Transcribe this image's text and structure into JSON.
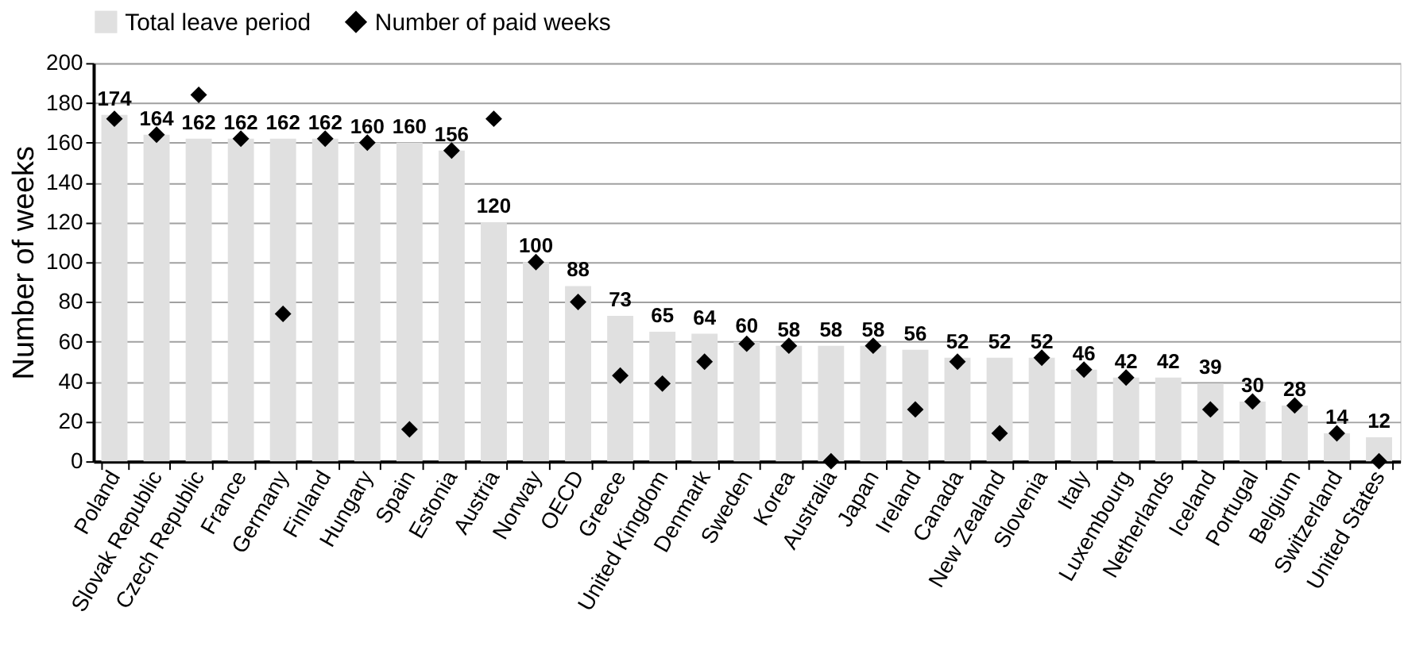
{
  "chart_data": {
    "type": "bar",
    "ylabel": "Number of weeks",
    "categories": [
      "Poland",
      "Slovak Republic",
      "Czech Republic",
      "France",
      "Germany",
      "Finland",
      "Hungary",
      "Spain",
      "Estonia",
      "Austria",
      "Norway",
      "OECD",
      "Greece",
      "United Kingdom",
      "Denmark",
      "Sweden",
      "Korea",
      "Australia",
      "Japan",
      "Ireland",
      "Canada",
      "New Zealand",
      "Slovenia",
      "Italy",
      "Luxembourg",
      "Netherlands",
      "Iceland",
      "Portugal",
      "Belgium",
      "Switzerland",
      "United States"
    ],
    "series": [
      {
        "name": "Total leave period",
        "color": "#e0e0e0",
        "values": [
          174,
          164,
          162,
          162,
          162,
          162,
          160,
          160,
          156,
          120,
          100,
          88,
          73,
          65,
          64,
          60,
          58,
          58,
          58,
          56,
          52,
          52,
          52,
          46,
          42,
          42,
          39,
          30,
          28,
          14,
          12
        ],
        "value_labels": [
          "174",
          "164",
          "162",
          "162",
          "162",
          "162",
          "160",
          "160",
          "156",
          "120",
          "100",
          "88",
          "73",
          "65",
          "64",
          "60",
          "58",
          "58",
          "58",
          "56",
          "52",
          "52",
          "52",
          "46",
          "42",
          "42",
          "39",
          "30",
          "28",
          "14",
          "12"
        ]
      },
      {
        "name": "Number of paid weeks",
        "type": "scatter",
        "color": "#000000",
        "marker": "diamond",
        "values": [
          172,
          164,
          184,
          162,
          74,
          162,
          160,
          16,
          156,
          172,
          100,
          80,
          43,
          39,
          50,
          59,
          58,
          0,
          58,
          26,
          50,
          14,
          52,
          46,
          42,
          null,
          26,
          30,
          28,
          14,
          0
        ]
      }
    ],
    "ylim": [
      0,
      200
    ],
    "yticks": [
      0,
      20,
      40,
      60,
      80,
      100,
      120,
      140,
      160,
      180,
      200
    ],
    "grid": "y",
    "legend": "top"
  }
}
